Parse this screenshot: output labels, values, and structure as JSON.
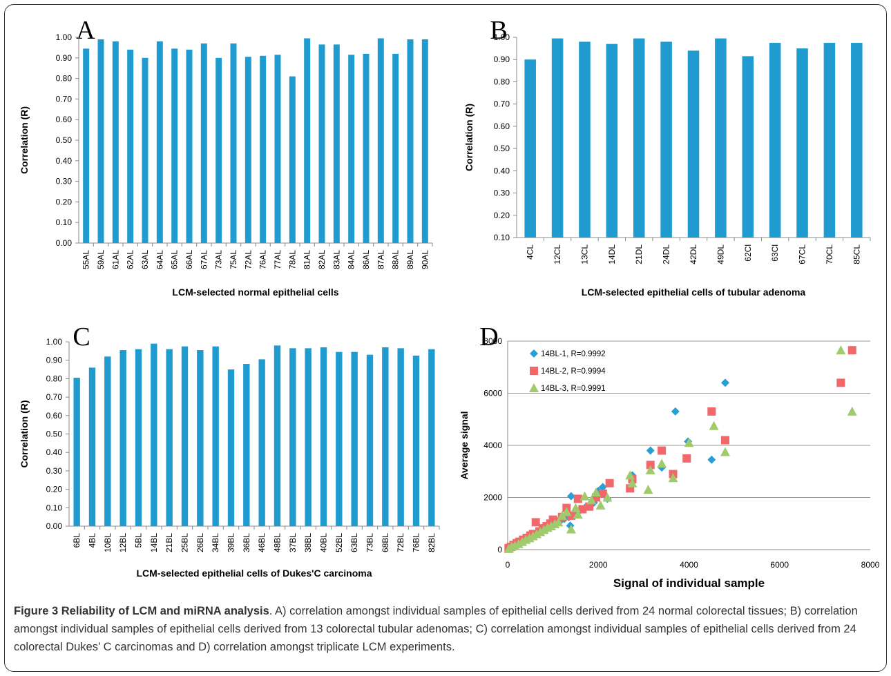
{
  "chart_data": [
    {
      "panel": "A",
      "type": "bar",
      "xlabel": "LCM-selected normal epithelial cells",
      "ylabel": "Correlation (R)",
      "ylim": [
        0,
        1
      ],
      "yticks": [
        "0.00",
        "0.10",
        "0.20",
        "0.30",
        "0.40",
        "0.50",
        "0.60",
        "0.70",
        "0.80",
        "0.90",
        "1.00"
      ],
      "categories": [
        "55AL",
        "59AL",
        "61AL",
        "62AL",
        "63AL",
        "64AL",
        "65AL",
        "66AL",
        "67AL",
        "73AL",
        "75AL",
        "72AL",
        "76AL",
        "77AL",
        "78AL",
        "81AL",
        "82AL",
        "83AL",
        "84AL",
        "86AL",
        "87AL",
        "88AL",
        "89AL",
        "90AL"
      ],
      "values": [
        0.945,
        0.99,
        0.98,
        0.94,
        0.9,
        0.98,
        0.945,
        0.94,
        0.97,
        0.9,
        0.97,
        0.905,
        0.91,
        0.915,
        0.81,
        0.995,
        0.965,
        0.965,
        0.915,
        0.92,
        0.995,
        0.92,
        0.99,
        0.99
      ],
      "color": "#1f9bd0"
    },
    {
      "panel": "B",
      "type": "bar",
      "xlabel": "LCM-selected epithelial cells of tubular adenoma",
      "ylabel": "Correlation (R)",
      "ylim": [
        0.1,
        1
      ],
      "yticks": [
        "0.10",
        "0.20",
        "0.30",
        "0.40",
        "0.50",
        "0.60",
        "0.70",
        "0.80",
        "0.90",
        "1.00"
      ],
      "categories": [
        "4CL",
        "12CL",
        "13CL",
        "14DL",
        "21DL",
        "24DL",
        "42DL",
        "49DL",
        "62Cl",
        "63Cl",
        "67CL",
        "70CL",
        "85CL"
      ],
      "values": [
        0.9,
        0.995,
        0.98,
        0.97,
        0.995,
        0.98,
        0.94,
        0.995,
        0.915,
        0.975,
        0.95,
        0.975,
        0.975
      ],
      "color": "#1f9bd0"
    },
    {
      "panel": "C",
      "type": "bar",
      "xlabel": "LCM-selected epithelial cells of Dukes'C carcinoma",
      "ylabel": "Correlation (R)",
      "ylim": [
        0,
        1
      ],
      "yticks": [
        "0.00",
        "0.10",
        "0.20",
        "0.30",
        "0.40",
        "0.50",
        "0.60",
        "0.70",
        "0.80",
        "0.90",
        "1.00"
      ],
      "categories": [
        "6BL",
        "4BL",
        "10BL",
        "12BL",
        "5BL",
        "14BL",
        "21BL",
        "25BL",
        "26BL",
        "34BL",
        "39BL",
        "36BL",
        "46BL",
        "48BL",
        "37BL",
        "38BL",
        "40BL",
        "52BL",
        "63BL",
        "73BL",
        "68BL",
        "72BL",
        "76BL",
        "82BL"
      ],
      "values": [
        0.805,
        0.86,
        0.92,
        0.955,
        0.96,
        0.99,
        0.96,
        0.975,
        0.955,
        0.975,
        0.85,
        0.88,
        0.905,
        0.98,
        0.965,
        0.965,
        0.97,
        0.945,
        0.945,
        0.93,
        0.97,
        0.965,
        0.925,
        0.96
      ],
      "color": "#1f9bd0"
    },
    {
      "panel": "D",
      "type": "scatter",
      "xlabel": "Signal of individual sample",
      "ylabel": "Average signal",
      "xlim": [
        0,
        8000
      ],
      "ylim": [
        0,
        8000
      ],
      "xticks": [
        "0",
        "2000",
        "4000",
        "6000",
        "8000"
      ],
      "yticks": [
        "0",
        "2000",
        "4000",
        "6000",
        "8000"
      ],
      "legend_position": "top-left",
      "series": [
        {
          "name": "14BL-1, R=0.9992",
          "marker": "diamond",
          "color": "#2a9fd6",
          "points": [
            [
              30,
              40
            ],
            [
              80,
              90
            ],
            [
              150,
              140
            ],
            [
              220,
              200
            ],
            [
              300,
              280
            ],
            [
              380,
              350
            ],
            [
              450,
              420
            ],
            [
              520,
              480
            ],
            [
              600,
              570
            ],
            [
              680,
              640
            ],
            [
              760,
              700
            ],
            [
              840,
              800
            ],
            [
              920,
              880
            ],
            [
              1000,
              950
            ],
            [
              1080,
              1020
            ],
            [
              1160,
              1100
            ],
            [
              1250,
              1180
            ],
            [
              1350,
              1250
            ],
            [
              1400,
              2050
            ],
            [
              1380,
              920
            ],
            [
              1500,
              1400
            ],
            [
              1600,
              1520
            ],
            [
              1700,
              1600
            ],
            [
              1800,
              1700
            ],
            [
              1900,
              1800
            ],
            [
              2000,
              2250
            ],
            [
              2100,
              2400
            ],
            [
              2200,
              1950
            ],
            [
              2750,
              2850
            ],
            [
              3150,
              3800
            ],
            [
              3400,
              3150
            ],
            [
              3700,
              5300
            ],
            [
              3980,
              4150
            ],
            [
              4500,
              3450
            ],
            [
              4800,
              6400
            ]
          ]
        },
        {
          "name": "14BL-2, R=0.9994",
          "marker": "square",
          "color": "#f0686a",
          "points": [
            [
              20,
              60
            ],
            [
              70,
              100
            ],
            [
              130,
              180
            ],
            [
              200,
              250
            ],
            [
              260,
              300
            ],
            [
              340,
              380
            ],
            [
              420,
              450
            ],
            [
              500,
              540
            ],
            [
              560,
              600
            ],
            [
              620,
              1050
            ],
            [
              700,
              700
            ],
            [
              780,
              820
            ],
            [
              860,
              900
            ],
            [
              940,
              1000
            ],
            [
              1000,
              1150
            ],
            [
              1100,
              1080
            ],
            [
              1200,
              1250
            ],
            [
              1300,
              1600
            ],
            [
              1400,
              1300
            ],
            [
              1550,
              1950
            ],
            [
              1650,
              1550
            ],
            [
              1800,
              1650
            ],
            [
              1950,
              2000
            ],
            [
              2100,
              2150
            ],
            [
              2250,
              2550
            ],
            [
              2700,
              2350
            ],
            [
              2750,
              2700
            ],
            [
              3150,
              3250
            ],
            [
              3400,
              3800
            ],
            [
              3650,
              2900
            ],
            [
              3950,
              3500
            ],
            [
              4500,
              5300
            ],
            [
              4800,
              4200
            ],
            [
              7350,
              6400
            ],
            [
              7600,
              7650
            ]
          ]
        },
        {
          "name": "14BL-3, R=0.9991",
          "marker": "triangle",
          "color": "#9fcb6c",
          "points": [
            [
              25,
              30
            ],
            [
              90,
              120
            ],
            [
              160,
              150
            ],
            [
              240,
              220
            ],
            [
              320,
              300
            ],
            [
              400,
              380
            ],
            [
              480,
              440
            ],
            [
              560,
              520
            ],
            [
              640,
              600
            ],
            [
              720,
              680
            ],
            [
              800,
              760
            ],
            [
              880,
              840
            ],
            [
              960,
              900
            ],
            [
              1040,
              980
            ],
            [
              1120,
              1050
            ],
            [
              1200,
              1300
            ],
            [
              1300,
              1450
            ],
            [
              1400,
              780
            ],
            [
              1500,
              1600
            ],
            [
              1550,
              1350
            ],
            [
              1700,
              2050
            ],
            [
              1850,
              1900
            ],
            [
              1950,
              2200
            ],
            [
              2050,
              1700
            ],
            [
              2200,
              2000
            ],
            [
              2700,
              2850
            ],
            [
              2750,
              2550
            ],
            [
              3100,
              2300
            ],
            [
              3150,
              3050
            ],
            [
              3400,
              3300
            ],
            [
              3650,
              2750
            ],
            [
              4000,
              4100
            ],
            [
              4550,
              4750
            ],
            [
              4800,
              3750
            ],
            [
              7350,
              7650
            ],
            [
              7600,
              5300
            ]
          ]
        }
      ]
    }
  ],
  "caption": {
    "title": "Figure 3 Reliability of LCM and miRNA analysis",
    "text": ". A) correlation amongst individual samples of epithelial cells derived from 24 normal colorectal tissues; B) correlation amongst individual samples of epithelial cells derived from 13 colorectal tubular adenomas; C) correlation amongst individual samples of epithelial cells derived from 24 colorectal Dukes’ C carcinomas and D) correlation amongst triplicate LCM experiments."
  }
}
